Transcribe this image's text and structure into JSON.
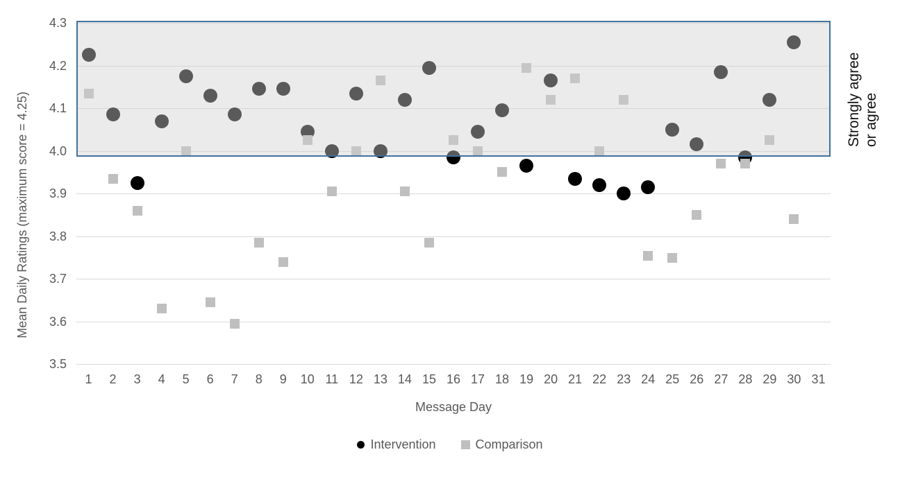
{
  "chart_data": {
    "type": "scatter",
    "title": "",
    "xlabel": "Message Day",
    "ylabel": "Mean Daily  Ratings (maximum score = 4.25)",
    "xlim": [
      0.5,
      31.5
    ],
    "ylim": [
      3.5,
      4.3
    ],
    "grid": true,
    "legend_position": "bottom",
    "x_ticks": [
      1,
      2,
      3,
      4,
      5,
      6,
      7,
      8,
      9,
      10,
      11,
      12,
      13,
      14,
      15,
      16,
      17,
      18,
      19,
      20,
      21,
      22,
      23,
      24,
      25,
      26,
      27,
      28,
      29,
      30,
      31
    ],
    "y_ticks": [
      "4.3",
      "4.2",
      "4.1",
      "4.0",
      "3.9",
      "3.8",
      "3.7",
      "3.6",
      "3.5"
    ],
    "band": {
      "label_line1": "Strongly agree",
      "label_line2": "or agree",
      "from": 4.0,
      "to": 4.3,
      "fill": "#ebebeb",
      "fill_overlay": "rgba(209,209,209,0.43)",
      "border_color": "#41719c"
    },
    "series": [
      {
        "name": "Intervention",
        "marker": "circle",
        "color": "#000000",
        "x": [
          1,
          2,
          3,
          4,
          5,
          6,
          7,
          8,
          9,
          10,
          11,
          12,
          13,
          14,
          15,
          16,
          17,
          18,
          19,
          20,
          21,
          22,
          23,
          24,
          25,
          26,
          27,
          28,
          29,
          30
        ],
        "values": [
          4.225,
          4.085,
          3.925,
          4.07,
          4.175,
          4.13,
          4.085,
          4.145,
          4.145,
          4.045,
          4.0,
          4.135,
          4.0,
          4.12,
          4.195,
          3.985,
          4.045,
          4.095,
          3.965,
          4.165,
          3.935,
          3.92,
          3.9,
          3.915,
          4.05,
          4.015,
          4.185,
          3.985,
          4.12,
          4.255
        ]
      },
      {
        "name": "Comparison",
        "marker": "square",
        "color": "#bfbfbf",
        "x": [
          1,
          2,
          3,
          4,
          5,
          6,
          7,
          8,
          9,
          10,
          11,
          12,
          13,
          14,
          15,
          16,
          17,
          18,
          19,
          20,
          21,
          22,
          23,
          24,
          25,
          26,
          27,
          28,
          29,
          30
        ],
        "values": [
          4.135,
          3.935,
          3.86,
          3.63,
          4.0,
          3.645,
          3.595,
          3.785,
          3.74,
          4.025,
          3.905,
          4.0,
          4.165,
          3.905,
          3.785,
          4.025,
          4.0,
          3.95,
          4.195,
          4.12,
          4.17,
          4.0,
          4.12,
          3.755,
          3.75,
          3.85,
          3.97,
          3.97,
          4.025,
          3.84
        ]
      }
    ],
    "colors": {
      "gridline": "#d9d9d9",
      "axis_text": "#595959"
    }
  }
}
